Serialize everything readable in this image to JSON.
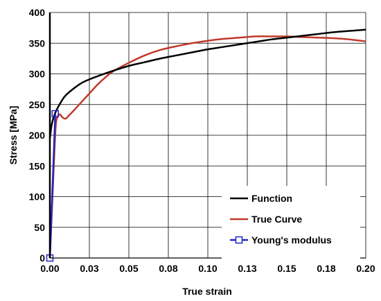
{
  "chart_data": {
    "type": "line",
    "xlabel": "True strain",
    "ylabel": "Stress [MPa]",
    "xlim": [
      0,
      0.2
    ],
    "ylim": [
      0,
      400
    ],
    "x_ticks": [
      0,
      0.025,
      0.05,
      0.075,
      0.1,
      0.125,
      0.15,
      0.175,
      0.2
    ],
    "x_tick_labels": [
      "0.00",
      "0.03",
      "0.05",
      "0.08",
      "0.10",
      "0.13",
      "0.15",
      "0.18",
      "0.20"
    ],
    "y_ticks": [
      0,
      50,
      100,
      150,
      200,
      250,
      300,
      350,
      400
    ],
    "y_tick_labels": [
      "0",
      "50",
      "100",
      "150",
      "200",
      "250",
      "300",
      "350",
      "400"
    ],
    "grid": true,
    "legend_position": "bottom-right",
    "series": [
      {
        "name": "Function",
        "color": "#000000",
        "marker": "none",
        "x": [
          0,
          0.001,
          0.002,
          0.003,
          0.005,
          0.0075,
          0.01,
          0.015,
          0.02,
          0.025,
          0.03,
          0.04,
          0.05,
          0.06,
          0.07,
          0.08,
          0.09,
          0.1,
          0.11,
          0.12,
          0.13,
          0.14,
          0.15,
          0.16,
          0.17,
          0.18,
          0.19,
          0.2
        ],
        "y": [
          195,
          215,
          226,
          234,
          245,
          256,
          265,
          276,
          285,
          291,
          296,
          305,
          313,
          319,
          325,
          330,
          335,
          340,
          344,
          348,
          352,
          356,
          359,
          362,
          365,
          368,
          370,
          372
        ]
      },
      {
        "name": "True Curve",
        "color": "#c0392b",
        "marker": "none",
        "x": [
          0,
          0.001,
          0.002,
          0.003,
          0.004,
          0.006,
          0.008,
          0.01,
          0.012,
          0.015,
          0.02,
          0.025,
          0.03,
          0.035,
          0.04,
          0.05,
          0.06,
          0.07,
          0.08,
          0.09,
          0.1,
          0.11,
          0.12,
          0.13,
          0.14,
          0.15,
          0.16,
          0.17,
          0.18,
          0.19,
          0.2
        ],
        "y": [
          0,
          60,
          120,
          180,
          222,
          234,
          229,
          227,
          232,
          240,
          254,
          268,
          282,
          294,
          304,
          318,
          330,
          339,
          345,
          350,
          354,
          357,
          359,
          361,
          361,
          361,
          360,
          359,
          358,
          356,
          353
        ]
      },
      {
        "name": "Young's modulus",
        "color": "#2323c8",
        "marker": "square",
        "x": [
          0,
          0.0034
        ],
        "y": [
          0,
          235
        ]
      }
    ]
  }
}
